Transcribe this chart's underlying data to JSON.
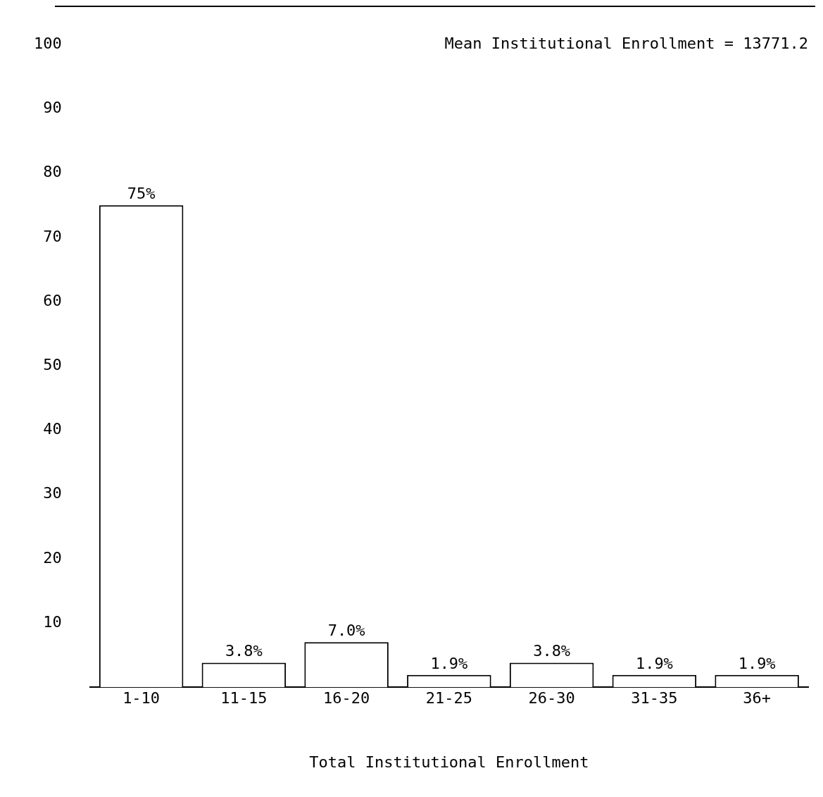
{
  "chart_data": {
    "type": "bar",
    "xlabel": "Total Institutional Enrollment",
    "annotations": [
      "Mean Institutional Enrollment = 13771.2"
    ],
    "categories": [
      "1-10",
      "11-15",
      "16-20",
      "21-25",
      "26-30",
      "31-35",
      "36+"
    ],
    "values": [
      75,
      3.8,
      7.0,
      1.9,
      3.8,
      1.9,
      1.9
    ],
    "value_labels": [
      "75%",
      "3.8%",
      "7.0%",
      "1.9%",
      "3.8%",
      "1.9%",
      "1.9%"
    ],
    "color": "#ffffff",
    "ylim": [
      0,
      100
    ],
    "yticks": [
      10,
      20,
      30,
      40,
      50,
      60,
      70,
      80,
      90,
      100
    ],
    "grid": false,
    "legend": false
  }
}
